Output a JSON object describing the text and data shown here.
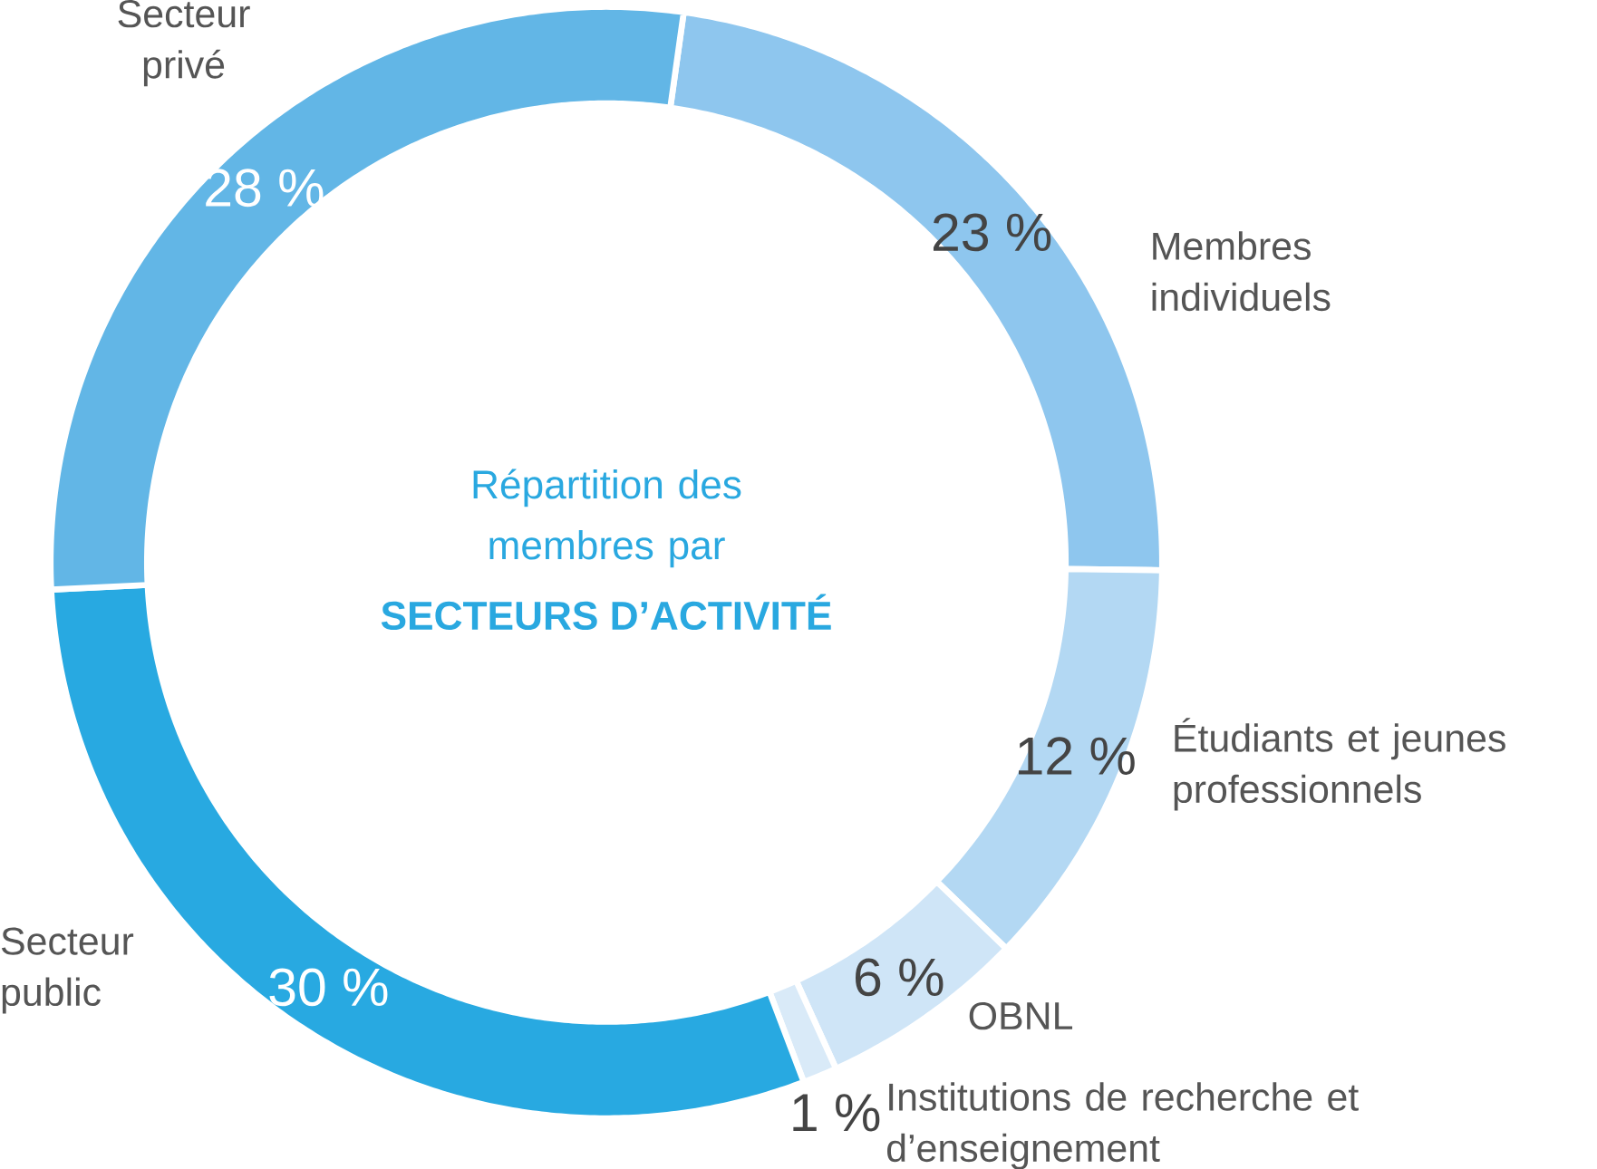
{
  "chart_data": {
    "type": "donut",
    "title": "Répartition des membres par",
    "subtitle": "SECTEURS D’ACTIVITÉ",
    "categories": [
      "Membres individuels",
      "Étudiants et jeunes professionnels",
      "OBNL",
      "Institutions de recherche et d’enseignement",
      "Secteur public",
      "Secteur privé"
    ],
    "values": [
      23,
      12,
      6,
      1,
      30,
      28
    ],
    "colors": [
      "#8ec6ee",
      "#b3d8f3",
      "#cfe5f7",
      "#d9eaf8",
      "#28a9e1",
      "#62b6e6"
    ],
    "value_labels": [
      "23 %",
      "12 %",
      "6 %",
      "1 %",
      "30 %",
      "28 %"
    ]
  }
}
